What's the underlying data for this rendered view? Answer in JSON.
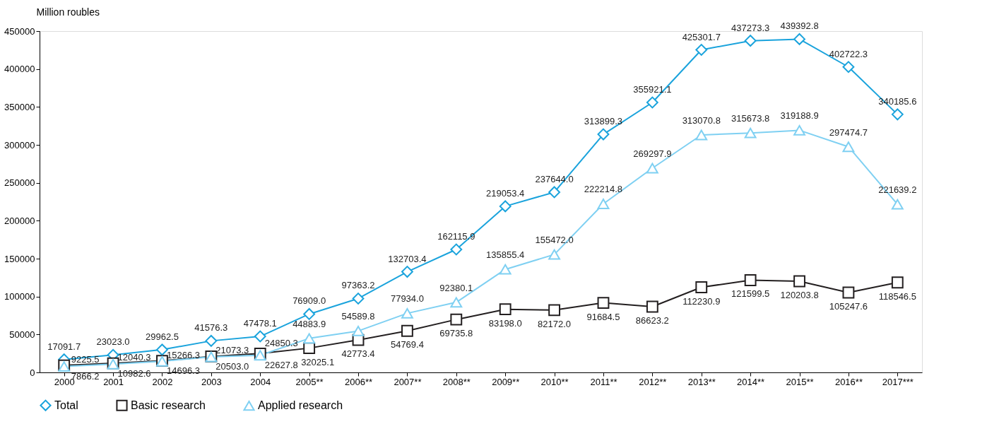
{
  "chart_data": {
    "type": "line",
    "ylabel": "Million roubles",
    "categories": [
      "2000",
      "2001",
      "2002",
      "2003",
      "2004",
      "2005**",
      "2006**",
      "2007**",
      "2008**",
      "2009**",
      "2010**",
      "2011**",
      "2012**",
      "2013**",
      "2014**",
      "2015**",
      "2016**",
      "2017***"
    ],
    "series": [
      {
        "name": "Total",
        "color": "#1aa3dc",
        "marker": "diamond",
        "values": [
          17091.7,
          23023,
          29962.5,
          41576.3,
          47478.1,
          76909,
          97363.2,
          132703.4,
          162115.9,
          219053.4,
          237644,
          313899.3,
          355921.1,
          425301.7,
          437273.3,
          439392.8,
          402722.3,
          340185.6
        ],
        "value_labels": [
          "17091.7",
          "23023.0",
          "29962.5",
          "41576.3",
          "47478.1",
          "76909.0",
          "97363.2",
          "132703.4",
          "162115.9",
          "219053.4",
          "237644.0",
          "313899.3",
          "355921.1",
          "425301.7",
          "437273.3",
          "439392.8",
          "402722.3",
          "340185.6"
        ]
      },
      {
        "name": "Basic research",
        "color": "#231f20",
        "marker": "square",
        "values": [
          9225.5,
          12040.3,
          15266.3,
          21073.3,
          24850.3,
          32025.1,
          42773.4,
          54769.4,
          69735.8,
          83198,
          82172,
          91684.5,
          86623.2,
          112230.9,
          121599.5,
          120203.8,
          105247.6,
          118546.5
        ],
        "value_labels": [
          "9225.5",
          "12040.3",
          "15266.3",
          "21073.3",
          "24850.3",
          "32025.1",
          "42773.4",
          "54769.4",
          "69735.8",
          "83198.0",
          "82172.0",
          "91684.5",
          "86623.2",
          "112230.9",
          "121599.5",
          "120203.8",
          "105247.6",
          "118546.5"
        ]
      },
      {
        "name": "Applied research",
        "color": "#7fd0f2",
        "marker": "triangle",
        "values": [
          7866.2,
          10982.6,
          14696.3,
          20503,
          22627.8,
          44883.9,
          54589.8,
          77934,
          92380.1,
          135855.4,
          155472,
          222214.8,
          269297.9,
          313070.8,
          315673.8,
          319188.9,
          297474.7,
          221639.2
        ],
        "value_labels": [
          "7866.2",
          "10982.6",
          "14696.3",
          "20503.0",
          "22627.8",
          "44883.9",
          "54589.8",
          "77934.0",
          "92380.1",
          "135855.4",
          "155472.0",
          "222214.8",
          "269297.9",
          "313070.8",
          "315673.8",
          "319188.9",
          "297474.7",
          "221639.2"
        ]
      }
    ],
    "ylim": [
      0,
      450000
    ],
    "yticks": [
      0,
      50000,
      100000,
      150000,
      200000,
      250000,
      300000,
      350000,
      400000,
      450000
    ],
    "grid": false,
    "legend": "bottom",
    "line_style": "solid"
  }
}
